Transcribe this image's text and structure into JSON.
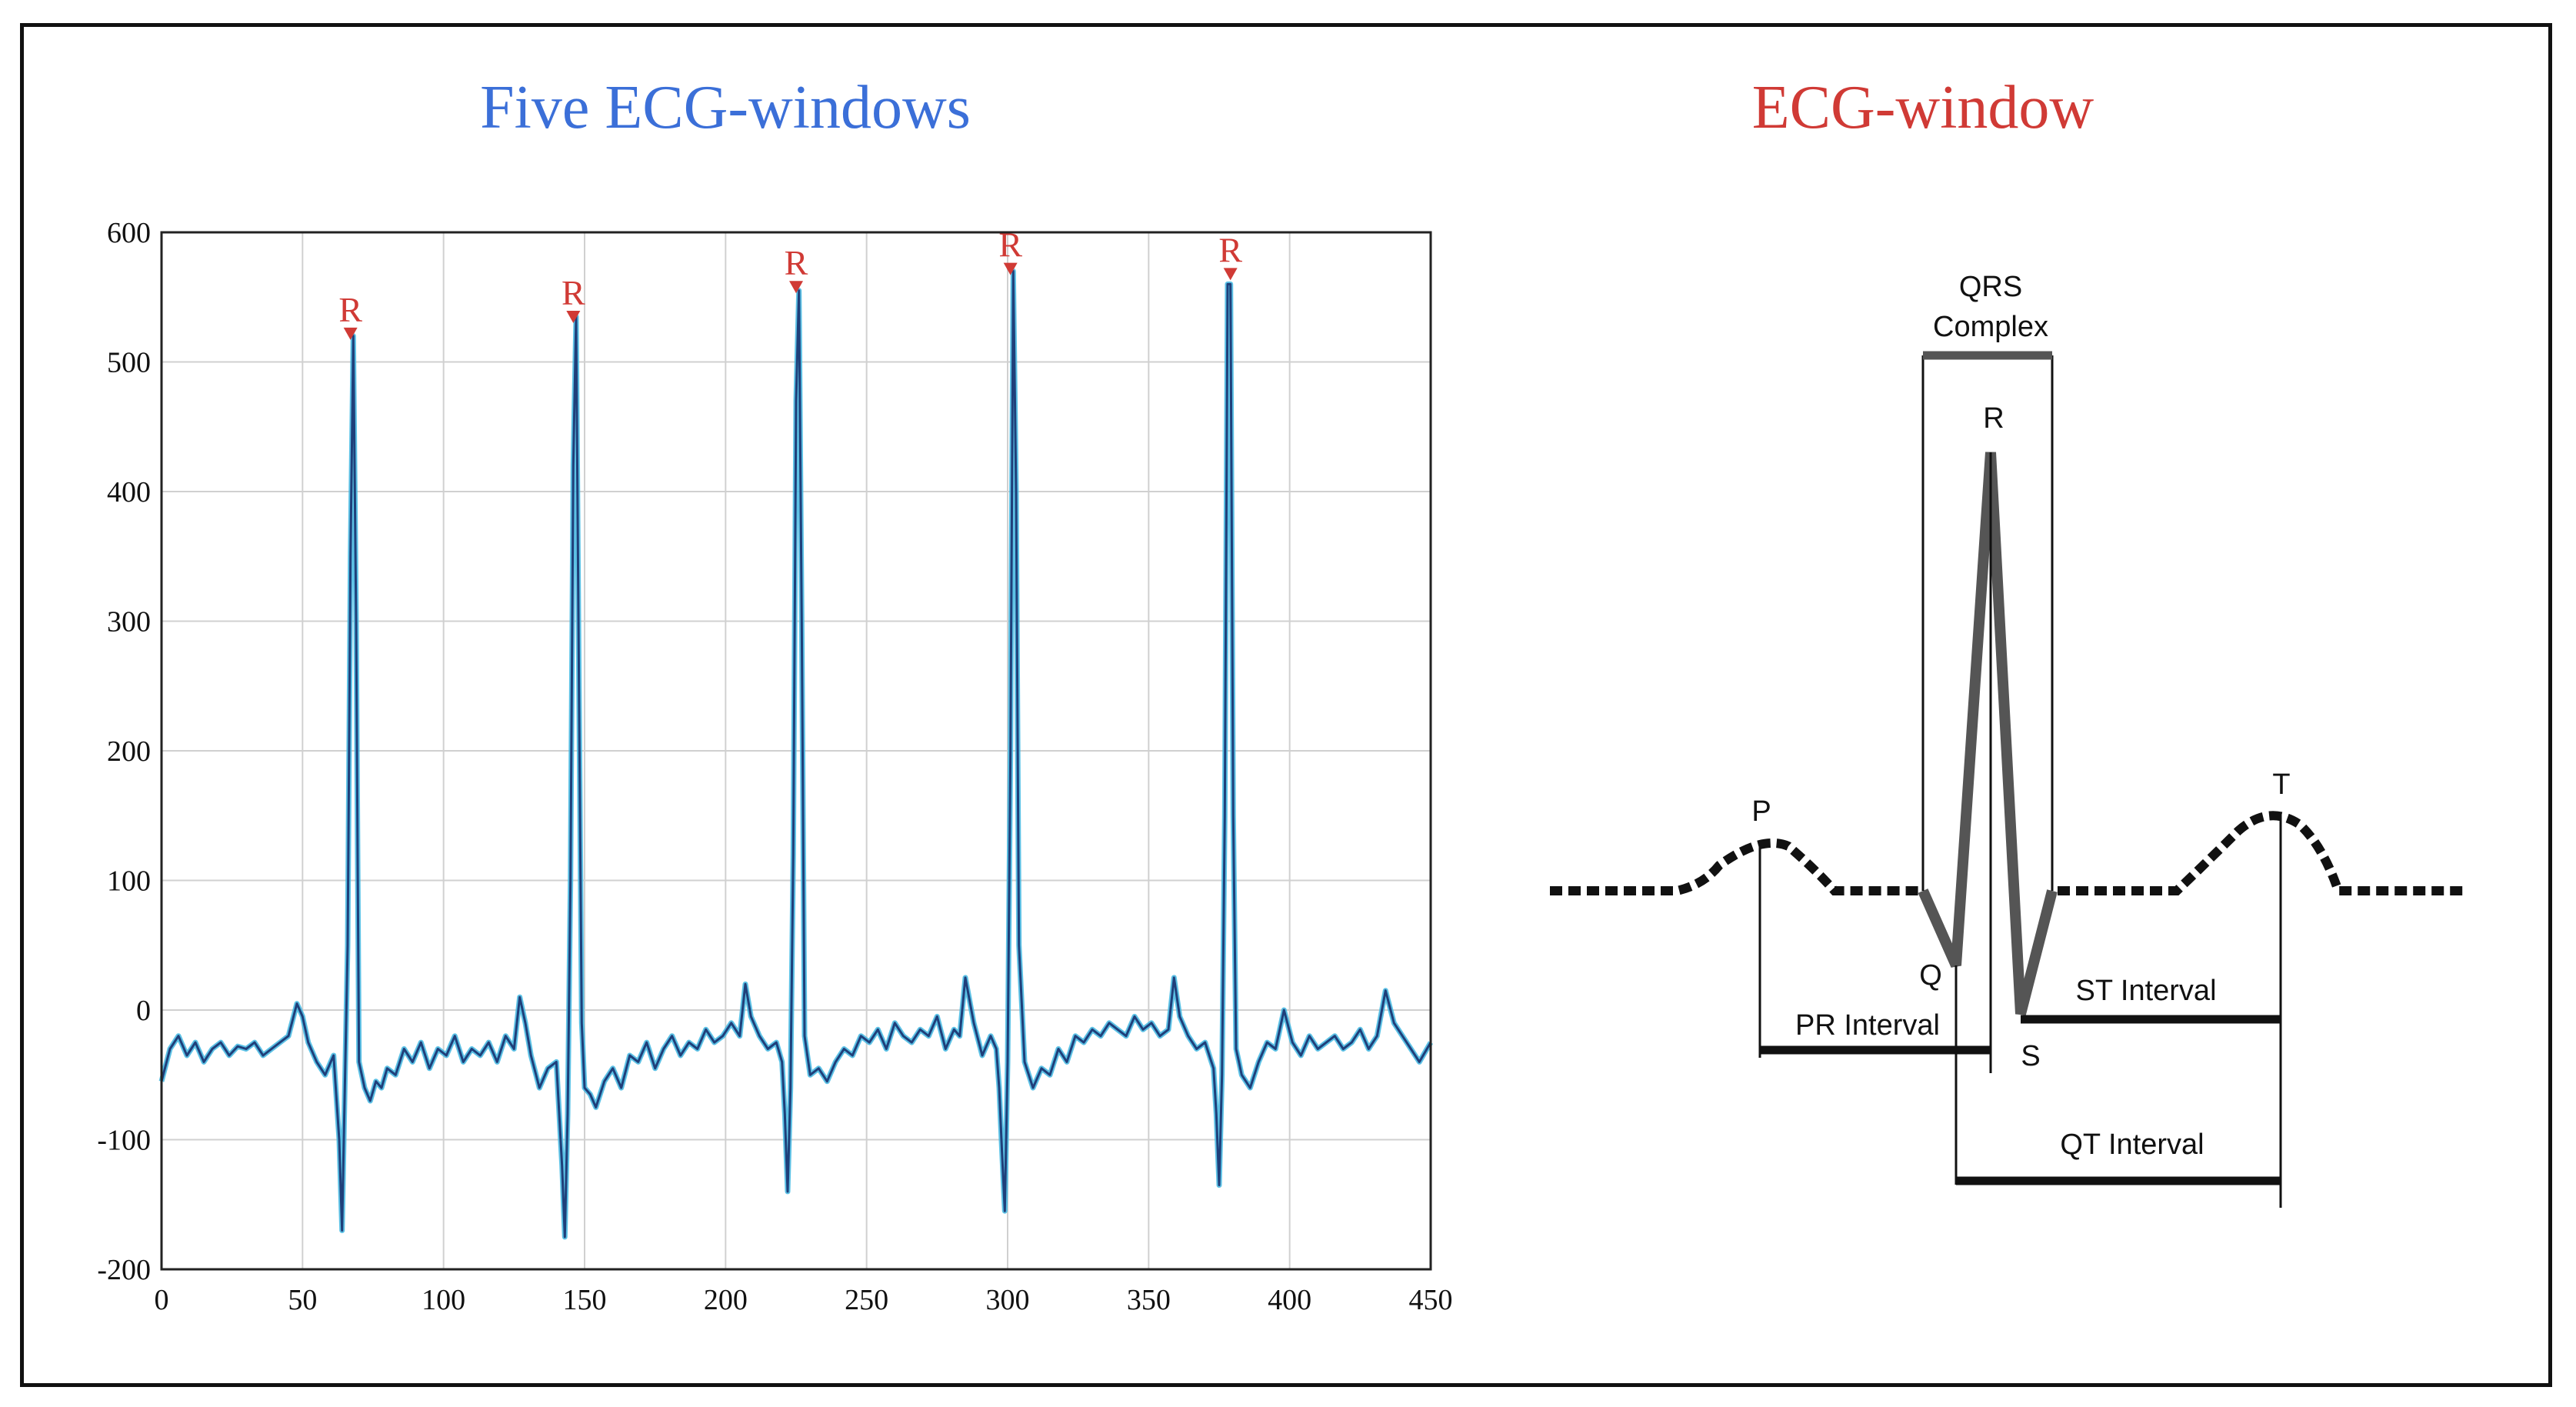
{
  "left_title": "Five ECG-windows",
  "right_title": "ECG-window",
  "colors": {
    "left_title": "#3b6fd8",
    "right_title": "#d03a35",
    "trace": "#1f3f7a",
    "trace_highlight": "#3fb6e0",
    "marker": "#d03a35"
  },
  "chart_data": [
    {
      "type": "line",
      "title": "Five ECG-windows",
      "xlabel": "",
      "ylabel": "",
      "xlim": [
        0,
        450
      ],
      "ylim": [
        -200,
        600
      ],
      "xticks": [
        0,
        50,
        100,
        150,
        200,
        250,
        300,
        350,
        400,
        450
      ],
      "yticks": [
        600,
        500,
        400,
        300,
        200,
        100,
        0,
        -100,
        -200
      ],
      "grid": true,
      "series": [
        {
          "x": [
            0,
            3,
            6,
            9,
            12,
            15,
            18,
            21,
            24,
            27,
            30,
            33,
            36,
            39,
            42,
            45,
            48,
            50,
            52,
            55,
            58,
            61,
            63,
            64,
            65,
            66,
            67,
            68,
            69,
            70,
            72,
            74,
            76,
            78,
            80,
            83,
            86,
            89,
            92,
            95,
            98,
            101,
            104,
            107,
            110,
            113,
            116,
            119,
            122,
            125,
            127,
            129,
            131,
            134,
            137,
            140,
            142,
            143,
            144,
            145,
            146,
            147,
            148,
            149,
            150,
            152,
            154,
            157,
            160,
            163,
            166,
            169,
            172,
            175,
            178,
            181,
            184,
            187,
            190,
            193,
            196,
            199,
            202,
            205,
            207,
            209,
            212,
            215,
            218,
            220,
            221,
            222,
            223,
            224,
            225,
            226,
            227,
            228,
            230,
            233,
            236,
            239,
            242,
            245,
            248,
            251,
            254,
            257,
            260,
            263,
            266,
            269,
            272,
            275,
            278,
            281,
            283,
            285,
            288,
            291,
            294,
            296,
            297,
            298,
            299,
            300,
            301,
            302,
            303,
            304,
            306,
            309,
            312,
            315,
            318,
            321,
            324,
            327,
            330,
            333,
            336,
            339,
            342,
            345,
            348,
            351,
            354,
            357,
            359,
            361,
            364,
            367,
            370,
            373,
            374,
            375,
            376,
            377,
            378,
            379,
            380,
            381,
            382,
            383,
            386,
            389,
            392,
            395,
            398,
            401,
            404,
            407,
            410,
            413,
            416,
            419,
            422,
            425,
            428,
            431,
            434,
            437,
            440,
            443,
            446,
            450
          ],
          "y": [
            -55,
            -30,
            -20,
            -35,
            -25,
            -40,
            -30,
            -25,
            -35,
            -28,
            -30,
            -25,
            -35,
            -30,
            -25,
            -20,
            5,
            -5,
            -25,
            -40,
            -50,
            -35,
            -100,
            -170,
            -60,
            50,
            350,
            520,
            300,
            -40,
            -60,
            -70,
            -55,
            -60,
            -45,
            -50,
            -30,
            -40,
            -25,
            -45,
            -30,
            -35,
            -20,
            -40,
            -30,
            -35,
            -25,
            -40,
            -20,
            -30,
            10,
            -10,
            -35,
            -60,
            -45,
            -40,
            -120,
            -175,
            -80,
            100,
            420,
            535,
            250,
            -10,
            -60,
            -65,
            -75,
            -55,
            -45,
            -60,
            -35,
            -40,
            -25,
            -45,
            -30,
            -20,
            -35,
            -25,
            -30,
            -15,
            -25,
            -20,
            -10,
            -20,
            20,
            -5,
            -20,
            -30,
            -25,
            -40,
            -80,
            -140,
            -60,
            120,
            470,
            555,
            300,
            -20,
            -50,
            -45,
            -55,
            -40,
            -30,
            -35,
            -20,
            -25,
            -15,
            -30,
            -10,
            -20,
            -25,
            -15,
            -20,
            -5,
            -30,
            -15,
            -20,
            25,
            -10,
            -35,
            -20,
            -30,
            -60,
            -110,
            -155,
            -40,
            200,
            570,
            400,
            50,
            -40,
            -60,
            -45,
            -50,
            -30,
            -40,
            -20,
            -25,
            -15,
            -20,
            -10,
            -15,
            -20,
            -5,
            -15,
            -10,
            -20,
            -15,
            25,
            -5,
            -20,
            -30,
            -25,
            -45,
            -80,
            -135,
            -50,
            150,
            560,
            560,
            150,
            -30,
            -40,
            -50,
            -60,
            -40,
            -25,
            -30,
            0,
            -25,
            -35,
            -20,
            -30,
            -25,
            -20,
            -30,
            -25,
            -15,
            -30,
            -20,
            15,
            -10,
            -20,
            -30,
            -40,
            -25
          ]
        }
      ],
      "peaks": [
        {
          "label": "R",
          "x": 67,
          "y": 517
        },
        {
          "label": "R",
          "x": 146,
          "y": 530
        },
        {
          "label": "R",
          "x": 225,
          "y": 553
        },
        {
          "label": "R",
          "x": 301,
          "y": 567
        },
        {
          "label": "R",
          "x": 379,
          "y": 563
        }
      ]
    }
  ],
  "diagram": {
    "qrs_label_line1": "QRS",
    "qrs_label_line2": "Complex",
    "wave_labels": {
      "p": "P",
      "q": "Q",
      "r": "R",
      "s": "S",
      "t": "T"
    },
    "intervals": {
      "pr": "PR Interval",
      "st": "ST Interval",
      "qt": "QT Interval"
    }
  }
}
